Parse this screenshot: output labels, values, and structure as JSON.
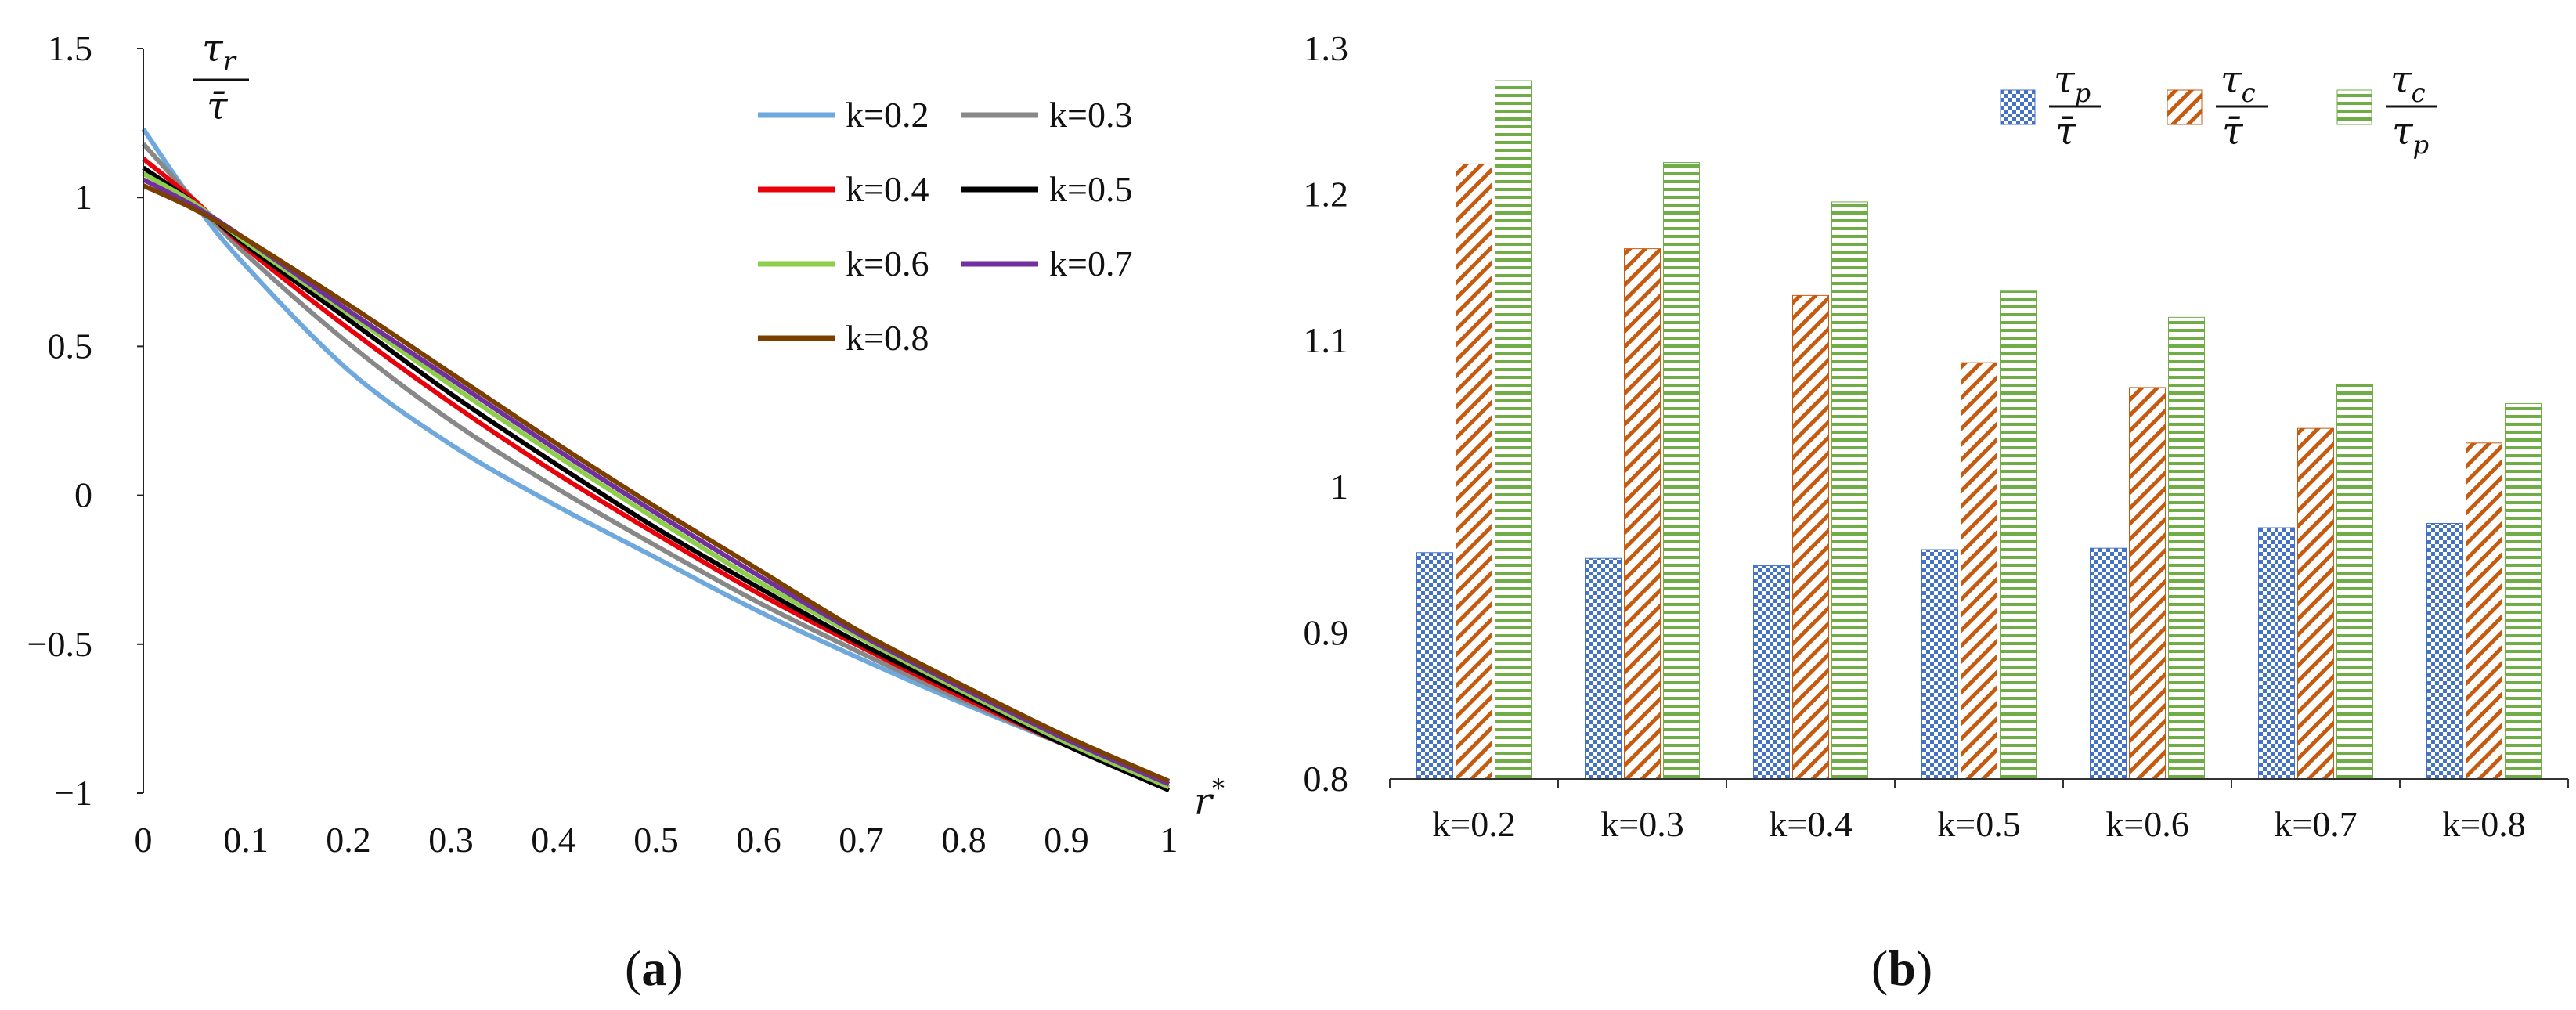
{
  "chart_data": [
    {
      "type": "line",
      "panel_label": "(a)",
      "bold_letter": "a",
      "ylabel": {
        "numerator": "τ",
        "numerator_sub": "r",
        "denominator": "τ̄"
      },
      "xlabel": {
        "symbol": "r",
        "superscript": "*"
      },
      "xlim": [
        0,
        1
      ],
      "ylim": [
        -1,
        1.5
      ],
      "x_ticks": [
        "0",
        "0.1",
        "0.2",
        "0.3",
        "0.4",
        "0.5",
        "0.6",
        "0.7",
        "0.8",
        "0.9",
        "1"
      ],
      "y_ticks": [
        "−1",
        "−0.5",
        "0",
        "0.5",
        "1",
        "1.5"
      ],
      "x_tick_values": [
        0,
        0.1,
        0.2,
        0.3,
        0.4,
        0.5,
        0.6,
        0.7,
        0.8,
        0.9,
        1
      ],
      "y_tick_values": [
        -1,
        -0.5,
        0,
        0.5,
        1,
        1.5
      ],
      "x": [
        0,
        0.05,
        0.1,
        0.2,
        0.3,
        0.4,
        0.5,
        0.6,
        0.7,
        0.8,
        0.9,
        1
      ],
      "series": [
        {
          "name": "k=0.2",
          "color": "#6fa8dc",
          "values": [
            1.23,
            0.98,
            0.77,
            0.42,
            0.17,
            -0.03,
            -0.21,
            -0.39,
            -0.55,
            -0.7,
            -0.84,
            -0.98
          ]
        },
        {
          "name": "k=0.3",
          "color": "#888888",
          "values": [
            1.18,
            0.99,
            0.81,
            0.51,
            0.25,
            0.03,
            -0.17,
            -0.36,
            -0.53,
            -0.69,
            -0.84,
            -0.98
          ]
        },
        {
          "name": "k=0.4",
          "color": "#e8000b",
          "values": [
            1.13,
            0.99,
            0.83,
            0.56,
            0.31,
            0.08,
            -0.13,
            -0.33,
            -0.51,
            -0.68,
            -0.84,
            -0.99
          ]
        },
        {
          "name": "k=0.5",
          "color": "#000000",
          "values": [
            1.1,
            0.98,
            0.84,
            0.59,
            0.34,
            0.11,
            -0.11,
            -0.31,
            -0.5,
            -0.67,
            -0.84,
            -0.99
          ]
        },
        {
          "name": "k=0.6",
          "color": "#8fce4a",
          "values": [
            1.08,
            0.98,
            0.85,
            0.61,
            0.37,
            0.14,
            -0.08,
            -0.29,
            -0.48,
            -0.66,
            -0.83,
            -0.98
          ]
        },
        {
          "name": "k=0.7",
          "color": "#7030a0",
          "values": [
            1.06,
            0.97,
            0.86,
            0.62,
            0.39,
            0.16,
            -0.06,
            -0.27,
            -0.47,
            -0.65,
            -0.82,
            -0.97
          ]
        },
        {
          "name": "k=0.8",
          "color": "#7b3f00",
          "values": [
            1.04,
            0.96,
            0.86,
            0.64,
            0.41,
            0.18,
            -0.04,
            -0.25,
            -0.46,
            -0.64,
            -0.81,
            -0.96
          ]
        }
      ],
      "legend_position": "top-right"
    },
    {
      "type": "bar",
      "panel_label": "(b)",
      "bold_letter": "b",
      "categories": [
        "k=0.2",
        "k=0.3",
        "k=0.4",
        "k=0.5",
        "k=0.6",
        "k=0.7",
        "k=0.8"
      ],
      "ylim": [
        0.8,
        1.3
      ],
      "y_ticks": [
        "0.8",
        "0.9",
        "1",
        "1.1",
        "1.2",
        "1.3"
      ],
      "y_tick_values": [
        0.8,
        0.9,
        1.0,
        1.1,
        1.2,
        1.3
      ],
      "series": [
        {
          "name": "τp / τ̄",
          "legend": {
            "num": "τ",
            "num_sub": "p",
            "den": "τ̄",
            "den_sub": ""
          },
          "color": "#4472c4",
          "pattern": "checker",
          "values": [
            0.955,
            0.951,
            0.946,
            0.957,
            0.958,
            0.972,
            0.975
          ]
        },
        {
          "name": "τc / τ̄",
          "legend": {
            "num": "τ",
            "num_sub": "c",
            "den": "τ̄",
            "den_sub": ""
          },
          "color": "#c55a11",
          "pattern": "diagonal",
          "values": [
            1.221,
            1.163,
            1.131,
            1.085,
            1.068,
            1.04,
            1.03
          ]
        },
        {
          "name": "τc / τp",
          "legend": {
            "num": "τ",
            "num_sub": "c",
            "den": "τ",
            "den_sub": "p"
          },
          "color": "#70ad47",
          "pattern": "horizontal",
          "values": [
            1.278,
            1.222,
            1.195,
            1.134,
            1.116,
            1.07,
            1.057
          ]
        }
      ],
      "legend_position": "top-right"
    }
  ]
}
